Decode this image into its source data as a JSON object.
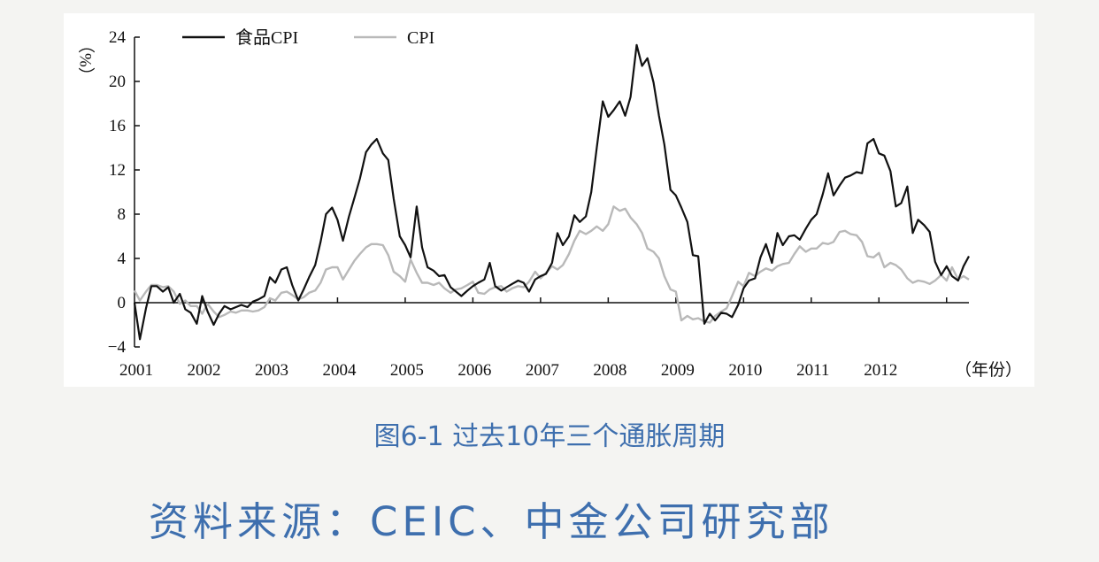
{
  "chart_data": {
    "type": "line",
    "ylabel": "（%）",
    "xlabel": "（年份）",
    "ylim": [
      -4,
      24
    ],
    "yticks": [
      "24",
      "20",
      "16",
      "12",
      "8",
      "4",
      "0",
      "−4"
    ],
    "xticks": [
      "2001",
      "2002",
      "2003",
      "2004",
      "2005",
      "2006",
      "2007",
      "2008",
      "2009",
      "2010",
      "2011",
      "2012"
    ],
    "legend_position": "top-left",
    "grid": false,
    "series": [
      {
        "name": "食品CPI",
        "color": "#111111",
        "points": [
          [
            2001.0,
            0.0
          ],
          [
            2001.08,
            -3.3
          ],
          [
            2001.17,
            -0.5
          ],
          [
            2001.25,
            1.5
          ],
          [
            2001.33,
            1.5
          ],
          [
            2001.42,
            1.0
          ],
          [
            2001.5,
            1.4
          ],
          [
            2001.58,
            0.0
          ],
          [
            2001.67,
            0.8
          ],
          [
            2001.75,
            -0.6
          ],
          [
            2001.83,
            -0.9
          ],
          [
            2001.92,
            -1.9
          ],
          [
            2002.0,
            0.6
          ],
          [
            2002.08,
            -0.8
          ],
          [
            2002.17,
            -2.0
          ],
          [
            2002.25,
            -1.0
          ],
          [
            2002.33,
            -0.3
          ],
          [
            2002.42,
            -0.6
          ],
          [
            2002.5,
            -0.4
          ],
          [
            2002.58,
            -0.2
          ],
          [
            2002.67,
            -0.4
          ],
          [
            2002.75,
            0.1
          ],
          [
            2002.83,
            0.3
          ],
          [
            2002.92,
            0.6
          ],
          [
            2003.0,
            2.3
          ],
          [
            2003.08,
            1.8
          ],
          [
            2003.17,
            3.0
          ],
          [
            2003.25,
            3.2
          ],
          [
            2003.33,
            1.6
          ],
          [
            2003.42,
            0.2
          ],
          [
            2003.5,
            1.2
          ],
          [
            2003.58,
            2.3
          ],
          [
            2003.67,
            3.4
          ],
          [
            2003.75,
            5.5
          ],
          [
            2003.83,
            8.0
          ],
          [
            2003.92,
            8.6
          ],
          [
            2004.0,
            7.5
          ],
          [
            2004.08,
            5.6
          ],
          [
            2004.17,
            7.8
          ],
          [
            2004.25,
            9.5
          ],
          [
            2004.33,
            11.2
          ],
          [
            2004.42,
            13.6
          ],
          [
            2004.5,
            14.3
          ],
          [
            2004.58,
            14.8
          ],
          [
            2004.67,
            13.5
          ],
          [
            2004.75,
            12.9
          ],
          [
            2004.83,
            9.4
          ],
          [
            2004.92,
            6.0
          ],
          [
            2005.0,
            5.2
          ],
          [
            2005.08,
            4.1
          ],
          [
            2005.17,
            8.7
          ],
          [
            2005.25,
            5.0
          ],
          [
            2005.33,
            3.2
          ],
          [
            2005.42,
            2.9
          ],
          [
            2005.5,
            2.4
          ],
          [
            2005.58,
            2.5
          ],
          [
            2005.67,
            1.4
          ],
          [
            2005.75,
            1.0
          ],
          [
            2005.83,
            0.6
          ],
          [
            2005.92,
            1.1
          ],
          [
            2006.0,
            1.5
          ],
          [
            2006.08,
            1.8
          ],
          [
            2006.17,
            2.1
          ],
          [
            2006.25,
            3.6
          ],
          [
            2006.33,
            1.5
          ],
          [
            2006.42,
            1.1
          ],
          [
            2006.5,
            1.4
          ],
          [
            2006.58,
            1.7
          ],
          [
            2006.67,
            2.0
          ],
          [
            2006.75,
            1.8
          ],
          [
            2006.83,
            1.0
          ],
          [
            2006.92,
            2.1
          ],
          [
            2007.0,
            2.4
          ],
          [
            2007.08,
            2.6
          ],
          [
            2007.17,
            3.6
          ],
          [
            2007.25,
            6.3
          ],
          [
            2007.33,
            5.2
          ],
          [
            2007.42,
            6.0
          ],
          [
            2007.5,
            7.9
          ],
          [
            2007.58,
            7.3
          ],
          [
            2007.67,
            7.8
          ],
          [
            2007.75,
            10.0
          ],
          [
            2007.83,
            14.0
          ],
          [
            2007.92,
            18.2
          ],
          [
            2008.0,
            16.8
          ],
          [
            2008.08,
            17.4
          ],
          [
            2008.17,
            18.2
          ],
          [
            2008.25,
            16.9
          ],
          [
            2008.33,
            18.6
          ],
          [
            2008.42,
            23.3
          ],
          [
            2008.5,
            21.4
          ],
          [
            2008.58,
            22.1
          ],
          [
            2008.67,
            19.9
          ],
          [
            2008.75,
            16.9
          ],
          [
            2008.83,
            14.3
          ],
          [
            2008.92,
            10.2
          ],
          [
            2009.0,
            9.7
          ],
          [
            2009.08,
            8.6
          ],
          [
            2009.17,
            7.3
          ],
          [
            2009.25,
            4.3
          ],
          [
            2009.33,
            4.2
          ],
          [
            2009.42,
            -1.9
          ],
          [
            2009.5,
            -1.0
          ],
          [
            2009.58,
            -1.6
          ],
          [
            2009.67,
            -0.9
          ],
          [
            2009.75,
            -1.0
          ],
          [
            2009.83,
            -1.3
          ],
          [
            2009.92,
            -0.2
          ],
          [
            2010.0,
            1.3
          ],
          [
            2010.08,
            2.0
          ],
          [
            2010.17,
            2.2
          ],
          [
            2010.25,
            4.1
          ],
          [
            2010.33,
            5.3
          ],
          [
            2010.42,
            3.6
          ],
          [
            2010.5,
            6.3
          ],
          [
            2010.58,
            5.2
          ],
          [
            2010.67,
            6.0
          ],
          [
            2010.75,
            6.1
          ],
          [
            2010.83,
            5.7
          ],
          [
            2010.92,
            6.7
          ],
          [
            2011.0,
            7.5
          ],
          [
            2011.08,
            8.0
          ],
          [
            2011.17,
            9.8
          ],
          [
            2011.25,
            11.7
          ],
          [
            2011.33,
            9.7
          ],
          [
            2011.42,
            10.6
          ],
          [
            2011.5,
            11.3
          ],
          [
            2011.58,
            11.5
          ],
          [
            2011.67,
            11.8
          ],
          [
            2011.75,
            11.7
          ],
          [
            2011.83,
            14.4
          ],
          [
            2011.92,
            14.8
          ],
          [
            2012.0,
            13.5
          ],
          [
            2012.08,
            13.3
          ],
          [
            2012.17,
            11.9
          ],
          [
            2012.25,
            8.7
          ],
          [
            2012.33,
            9.0
          ],
          [
            2012.42,
            10.5
          ],
          [
            2012.5,
            6.3
          ],
          [
            2012.58,
            7.5
          ],
          [
            2012.67,
            7.0
          ],
          [
            2012.75,
            6.4
          ],
          [
            2012.83,
            3.7
          ],
          [
            2012.92,
            2.5
          ],
          [
            2013.0,
            3.3
          ],
          [
            2013.08,
            2.4
          ],
          [
            2013.17,
            2.0
          ],
          [
            2013.25,
            3.3
          ],
          [
            2013.33,
            4.2
          ]
        ]
      },
      {
        "name": "CPI",
        "color": "#b9b9b9",
        "points": [
          [
            2001.0,
            1.1
          ],
          [
            2001.08,
            0.2
          ],
          [
            2001.17,
            1.0
          ],
          [
            2001.25,
            1.6
          ],
          [
            2001.33,
            1.6
          ],
          [
            2001.42,
            1.4
          ],
          [
            2001.5,
            1.5
          ],
          [
            2001.58,
            1.0
          ],
          [
            2001.67,
            -0.1
          ],
          [
            2001.75,
            0.2
          ],
          [
            2001.83,
            -0.3
          ],
          [
            2001.92,
            -0.3
          ],
          [
            2002.0,
            -1.0
          ],
          [
            2002.08,
            -0.1
          ],
          [
            2002.17,
            -0.8
          ],
          [
            2002.25,
            -1.3
          ],
          [
            2002.33,
            -1.1
          ],
          [
            2002.42,
            -0.8
          ],
          [
            2002.5,
            -0.9
          ],
          [
            2002.58,
            -0.7
          ],
          [
            2002.67,
            -0.7
          ],
          [
            2002.75,
            -0.8
          ],
          [
            2002.83,
            -0.7
          ],
          [
            2002.92,
            -0.4
          ],
          [
            2003.0,
            0.4
          ],
          [
            2003.08,
            0.2
          ],
          [
            2003.17,
            0.9
          ],
          [
            2003.25,
            1.0
          ],
          [
            2003.33,
            0.7
          ],
          [
            2003.42,
            0.3
          ],
          [
            2003.5,
            0.5
          ],
          [
            2003.58,
            0.9
          ],
          [
            2003.67,
            1.1
          ],
          [
            2003.75,
            1.8
          ],
          [
            2003.83,
            3.0
          ],
          [
            2003.92,
            3.2
          ],
          [
            2004.0,
            3.2
          ],
          [
            2004.08,
            2.1
          ],
          [
            2004.17,
            3.0
          ],
          [
            2004.25,
            3.8
          ],
          [
            2004.33,
            4.4
          ],
          [
            2004.42,
            5.0
          ],
          [
            2004.5,
            5.3
          ],
          [
            2004.58,
            5.3
          ],
          [
            2004.67,
            5.2
          ],
          [
            2004.75,
            4.3
          ],
          [
            2004.83,
            2.8
          ],
          [
            2004.92,
            2.4
          ],
          [
            2005.0,
            1.9
          ],
          [
            2005.08,
            3.9
          ],
          [
            2005.17,
            2.7
          ],
          [
            2005.25,
            1.8
          ],
          [
            2005.33,
            1.8
          ],
          [
            2005.42,
            1.6
          ],
          [
            2005.5,
            1.8
          ],
          [
            2005.58,
            1.3
          ],
          [
            2005.67,
            0.9
          ],
          [
            2005.75,
            1.2
          ],
          [
            2005.83,
            1.3
          ],
          [
            2005.92,
            1.6
          ],
          [
            2006.0,
            1.9
          ],
          [
            2006.08,
            0.9
          ],
          [
            2006.17,
            0.8
          ],
          [
            2006.25,
            1.2
          ],
          [
            2006.33,
            1.4
          ],
          [
            2006.42,
            1.5
          ],
          [
            2006.5,
            1.0
          ],
          [
            2006.58,
            1.3
          ],
          [
            2006.67,
            1.5
          ],
          [
            2006.75,
            1.4
          ],
          [
            2006.83,
            1.9
          ],
          [
            2006.92,
            2.8
          ],
          [
            2007.0,
            2.2
          ],
          [
            2007.08,
            2.7
          ],
          [
            2007.17,
            3.3
          ],
          [
            2007.25,
            3.0
          ],
          [
            2007.33,
            3.4
          ],
          [
            2007.42,
            4.4
          ],
          [
            2007.5,
            5.6
          ],
          [
            2007.58,
            6.5
          ],
          [
            2007.67,
            6.2
          ],
          [
            2007.75,
            6.5
          ],
          [
            2007.83,
            6.9
          ],
          [
            2007.92,
            6.5
          ],
          [
            2008.0,
            7.1
          ],
          [
            2008.08,
            8.7
          ],
          [
            2008.17,
            8.3
          ],
          [
            2008.25,
            8.5
          ],
          [
            2008.33,
            7.7
          ],
          [
            2008.42,
            7.1
          ],
          [
            2008.5,
            6.3
          ],
          [
            2008.58,
            4.9
          ],
          [
            2008.67,
            4.6
          ],
          [
            2008.75,
            4.0
          ],
          [
            2008.83,
            2.4
          ],
          [
            2008.92,
            1.2
          ],
          [
            2009.0,
            1.0
          ],
          [
            2009.08,
            -1.6
          ],
          [
            2009.17,
            -1.2
          ],
          [
            2009.25,
            -1.5
          ],
          [
            2009.33,
            -1.4
          ],
          [
            2009.42,
            -1.7
          ],
          [
            2009.5,
            -1.8
          ],
          [
            2009.58,
            -1.2
          ],
          [
            2009.67,
            -0.8
          ],
          [
            2009.75,
            -0.5
          ],
          [
            2009.83,
            0.6
          ],
          [
            2009.92,
            1.9
          ],
          [
            2010.0,
            1.5
          ],
          [
            2010.08,
            2.7
          ],
          [
            2010.17,
            2.4
          ],
          [
            2010.25,
            2.8
          ],
          [
            2010.33,
            3.1
          ],
          [
            2010.42,
            2.9
          ],
          [
            2010.5,
            3.3
          ],
          [
            2010.58,
            3.5
          ],
          [
            2010.67,
            3.6
          ],
          [
            2010.75,
            4.4
          ],
          [
            2010.83,
            5.1
          ],
          [
            2010.92,
            4.6
          ],
          [
            2011.0,
            4.9
          ],
          [
            2011.08,
            4.9
          ],
          [
            2011.17,
            5.4
          ],
          [
            2011.25,
            5.3
          ],
          [
            2011.33,
            5.5
          ],
          [
            2011.42,
            6.4
          ],
          [
            2011.5,
            6.5
          ],
          [
            2011.58,
            6.2
          ],
          [
            2011.67,
            6.1
          ],
          [
            2011.75,
            5.5
          ],
          [
            2011.83,
            4.2
          ],
          [
            2011.92,
            4.1
          ],
          [
            2012.0,
            4.5
          ],
          [
            2012.08,
            3.2
          ],
          [
            2012.17,
            3.6
          ],
          [
            2012.25,
            3.4
          ],
          [
            2012.33,
            3.0
          ],
          [
            2012.42,
            2.2
          ],
          [
            2012.5,
            1.8
          ],
          [
            2012.58,
            2.0
          ],
          [
            2012.67,
            1.9
          ],
          [
            2012.75,
            1.7
          ],
          [
            2012.83,
            2.0
          ],
          [
            2012.92,
            2.5
          ],
          [
            2013.0,
            2.0
          ],
          [
            2013.08,
            3.2
          ],
          [
            2013.17,
            2.1
          ],
          [
            2013.25,
            2.4
          ],
          [
            2013.33,
            2.1
          ]
        ]
      }
    ]
  },
  "figure_caption": "图6-1 过去10年三个通胀周期",
  "source_note": "资料来源：CEIC、中金公司研究部"
}
